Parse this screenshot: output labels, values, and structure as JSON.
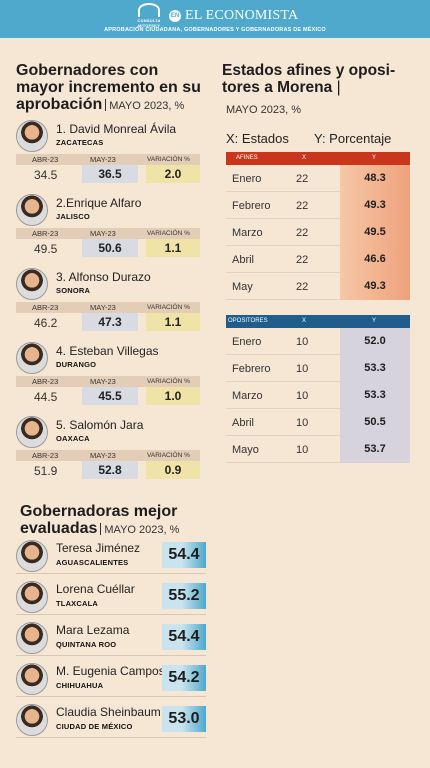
{
  "header": {
    "seal_text": "CONSULTA MITOFSKY",
    "en_label": "EN",
    "brand": "EL ECONOMISTA",
    "subtitle": "APROBACIÓN CIUDADANA, GOBERNADORES Y GOBERNADORAS DE MÉXICO"
  },
  "increment": {
    "title_line1": "Gobernadores con",
    "title_line2": "mayor incremento en su",
    "title_line3": "aprobación",
    "date": "MAYO 2023, %",
    "col_abr": "ABR-23",
    "col_may": "MAY-23",
    "col_var": "VARIACIÓN %",
    "governors": [
      {
        "name": "1. David Monreal Ávila",
        "state": "ZACATECAS",
        "abr": "34.5",
        "may": "36.5",
        "var": "2.0"
      },
      {
        "name": "2.Enrique Alfaro",
        "state": "JALISCO",
        "abr": "49.5",
        "may": "50.6",
        "var": "1.1"
      },
      {
        "name": "3. Alfonso Durazo",
        "state": "SONORA",
        "abr": "46.2",
        "may": "47.3",
        "var": "1.1"
      },
      {
        "name": "4. Esteban Villegas",
        "state": "DURANGO",
        "abr": "44.5",
        "may": "45.5",
        "var": "1.0"
      },
      {
        "name": "5. Salomón Jara",
        "state": "OAXACA",
        "abr": "51.9",
        "may": "52.8",
        "var": "0.9"
      }
    ]
  },
  "governadoras": {
    "title_line1": "Gobernadoras mejor",
    "title_line2": "evaluadas",
    "date": "MAYO 2023, %",
    "items": [
      {
        "name": "Teresa Jiménez",
        "state": "AGUASCALIENTES",
        "score": "54.4"
      },
      {
        "name": "Lorena Cuéllar",
        "state": "TLAXCALA",
        "score": "55.2"
      },
      {
        "name": "Mara Lezama",
        "state": "QUINTANA ROO",
        "score": "54.4"
      },
      {
        "name": "M. Eugenia Campos",
        "state": "CHIHUAHUA",
        "score": "54.2"
      },
      {
        "name": "Claudia Sheinbaum",
        "state": "CIUDAD DE MÉXICO",
        "score": "53.0"
      }
    ]
  },
  "states": {
    "title_line1": "Estados afines y oposi-",
    "title_line2": "tores a Morena",
    "date": "MAYO 2023, %",
    "x_axis": "X: Estados",
    "y_axis": "Y: Porcentaje",
    "afines": {
      "label": "AFINES",
      "x_label": "X",
      "y_label": "Y",
      "rows": [
        {
          "month": "Enero",
          "x": "22",
          "y": "48.3"
        },
        {
          "month": "Febrero",
          "x": "22",
          "y": "49.3"
        },
        {
          "month": "Marzo",
          "x": "22",
          "y": "49.5"
        },
        {
          "month": "Abril",
          "x": "22",
          "y": "46.6"
        },
        {
          "month": "May",
          "x": "22",
          "y": "49.3"
        }
      ]
    },
    "opositores": {
      "label": "OPOSITORES",
      "x_label": "X",
      "y_label": "Y",
      "rows": [
        {
          "month": "Enero",
          "x": "10",
          "y": "52.0"
        },
        {
          "month": "Febrero",
          "x": "10",
          "y": "53.3"
        },
        {
          "month": "Marzo",
          "x": "10",
          "y": "53.3"
        },
        {
          "month": "Abril",
          "x": "10",
          "y": "50.5"
        },
        {
          "month": "Mayo",
          "x": "10",
          "y": "53.7"
        }
      ]
    }
  },
  "colors": {
    "header_blue": "#4fa9cc",
    "background": "#f6e6d4",
    "afines_red": "#c9361b",
    "opositores_blue": "#1e5d8c"
  }
}
